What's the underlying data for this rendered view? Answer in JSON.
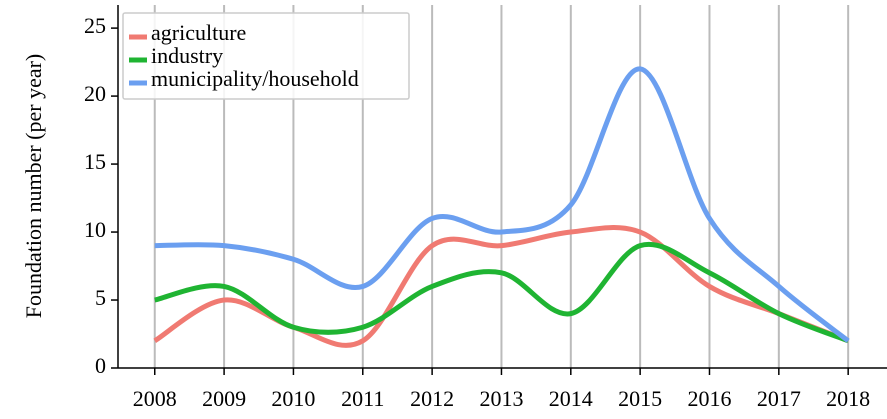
{
  "chart_data": {
    "type": "line",
    "y_label": "Foundation number (per year)",
    "x": [
      2008,
      2009,
      2010,
      2011,
      2012,
      2013,
      2014,
      2015,
      2016,
      2017,
      2018
    ],
    "series": [
      {
        "name": "agriculture",
        "color": "#f07a72",
        "values": [
          2,
          5,
          3,
          2,
          9,
          9,
          10,
          10,
          6,
          4,
          2
        ]
      },
      {
        "name": "industry",
        "color": "#1fb432",
        "values": [
          5,
          6,
          3,
          3,
          6,
          7,
          4,
          9,
          7,
          4,
          2
        ]
      },
      {
        "name": "municipality/household",
        "color": "#6b9ff0",
        "values": [
          9,
          9,
          8,
          6,
          11,
          10,
          12,
          22,
          11,
          6,
          2
        ]
      }
    ],
    "xlim": [
      2007.47,
      2018.56
    ],
    "xticks": [
      2008,
      2009,
      2010,
      2011,
      2012,
      2013,
      2014,
      2015,
      2016,
      2017,
      2018
    ],
    "ylim": [
      0,
      26.7
    ],
    "yticks": [
      0,
      5,
      10,
      15,
      20,
      25
    ],
    "grid": true,
    "legend": "upper left"
  }
}
